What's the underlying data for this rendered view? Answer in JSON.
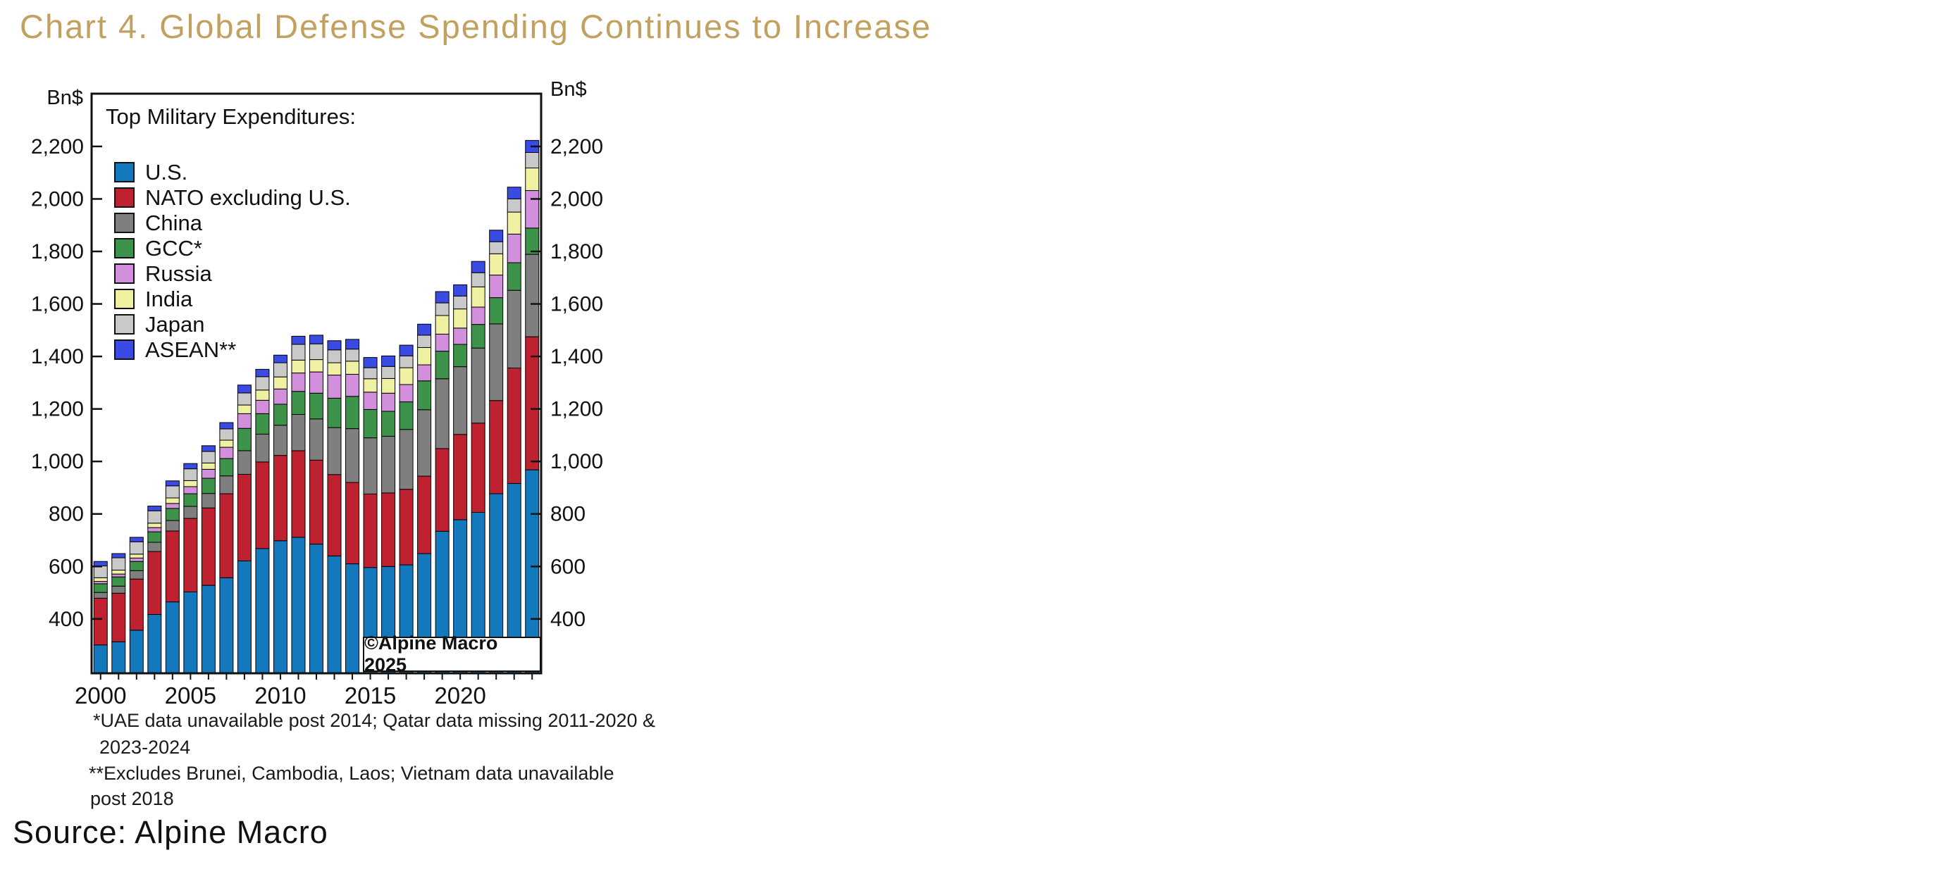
{
  "page": {
    "title": "Chart 4. Global Defense Spending Continues to Increase",
    "title_color": "#C2A05F",
    "source": "Source: Alpine Macro",
    "watermark": "©Alpine Macro 2025",
    "footnotes": {
      "line1": "*UAE data unavailable post 2014; Qatar data missing 2011-2020 &",
      "line2": "2023-2024",
      "line3": "**Excludes Brunei, Cambodia, Laos; Vietnam data unavailable",
      "line4": "post 2018"
    },
    "axis_unit_left": "Bn$",
    "axis_unit_right": "Bn$"
  },
  "chart_data": {
    "type": "bar",
    "stacked": true,
    "legend_title": "Top Military Expenditures:",
    "legend_position": "top-left-inside",
    "grid": false,
    "x": [
      2000,
      2001,
      2002,
      2003,
      2004,
      2005,
      2006,
      2007,
      2008,
      2009,
      2010,
      2011,
      2012,
      2013,
      2014,
      2015,
      2016,
      2017,
      2018,
      2019,
      2020,
      2021,
      2022,
      2023,
      2024
    ],
    "x_tick_labels": [
      "2000",
      "2005",
      "2010",
      "2015",
      "2020"
    ],
    "x_tick_years": [
      2000,
      2005,
      2010,
      2015,
      2020
    ],
    "ylabel": "Bn$",
    "y_ticks": [
      400,
      600,
      800,
      1000,
      1200,
      1400,
      1600,
      1800,
      2000,
      2200
    ],
    "ylim": [
      193,
      2401
    ],
    "bar_outline_color": "#000000",
    "series": [
      {
        "name": "U.S.",
        "color": "#1478BC",
        "values": [
          301,
          313,
          357,
          417,
          465,
          503,
          528,
          557,
          621,
          668,
          698,
          711,
          685,
          640,
          610,
          596,
          600,
          606,
          649,
          734,
          778,
          806,
          877,
          916,
          968
        ]
      },
      {
        "name": "NATO excluding U.S.",
        "color": "#BE2130",
        "values": [
          178,
          185,
          195,
          240,
          270,
          280,
          295,
          320,
          330,
          330,
          325,
          330,
          320,
          310,
          310,
          280,
          280,
          288,
          295,
          315,
          325,
          340,
          355,
          440,
          507
        ]
      },
      {
        "name": "China",
        "color": "#7F7F7F",
        "values": [
          22,
          27,
          32,
          35,
          40,
          46,
          55,
          68,
          90,
          106,
          115,
          138,
          157,
          179,
          205,
          214,
          216,
          228,
          253,
          266,
          258,
          286,
          292,
          296,
          314
        ]
      },
      {
        "name": "GCC*",
        "color": "#3D9349",
        "values": [
          33,
          35,
          35,
          40,
          46,
          48,
          58,
          66,
          85,
          78,
          80,
          88,
          98,
          112,
          123,
          108,
          95,
          105,
          110,
          105,
          85,
          90,
          100,
          105,
          100
        ]
      },
      {
        "name": "Russia",
        "color": "#D18FDC",
        "values": [
          9,
          11,
          13,
          16,
          19,
          27,
          34,
          43,
          56,
          51,
          58,
          70,
          81,
          88,
          84,
          66,
          69,
          66,
          61,
          65,
          62,
          66,
          86,
          109,
          143
        ]
      },
      {
        "name": "India",
        "color": "#EFF0A2",
        "values": [
          14,
          15,
          15,
          17,
          21,
          23,
          24,
          27,
          33,
          39,
          46,
          49,
          47,
          47,
          50,
          51,
          56,
          64,
          66,
          71,
          73,
          77,
          81,
          84,
          86
        ]
      },
      {
        "name": "Japan",
        "color": "#C9C9C9",
        "values": [
          45,
          47,
          47,
          47,
          46,
          45,
          44,
          43,
          46,
          51,
          54,
          60,
          60,
          49,
          46,
          42,
          46,
          45,
          47,
          48,
          49,
          54,
          46,
          50,
          59
        ]
      },
      {
        "name": "ASEAN**",
        "color": "#3A4BE3",
        "values": [
          17,
          16,
          17,
          18,
          19,
          20,
          22,
          24,
          30,
          28,
          29,
          31,
          33,
          35,
          37,
          39,
          40,
          41,
          42,
          43,
          43,
          43,
          44,
          45,
          46
        ]
      }
    ]
  }
}
